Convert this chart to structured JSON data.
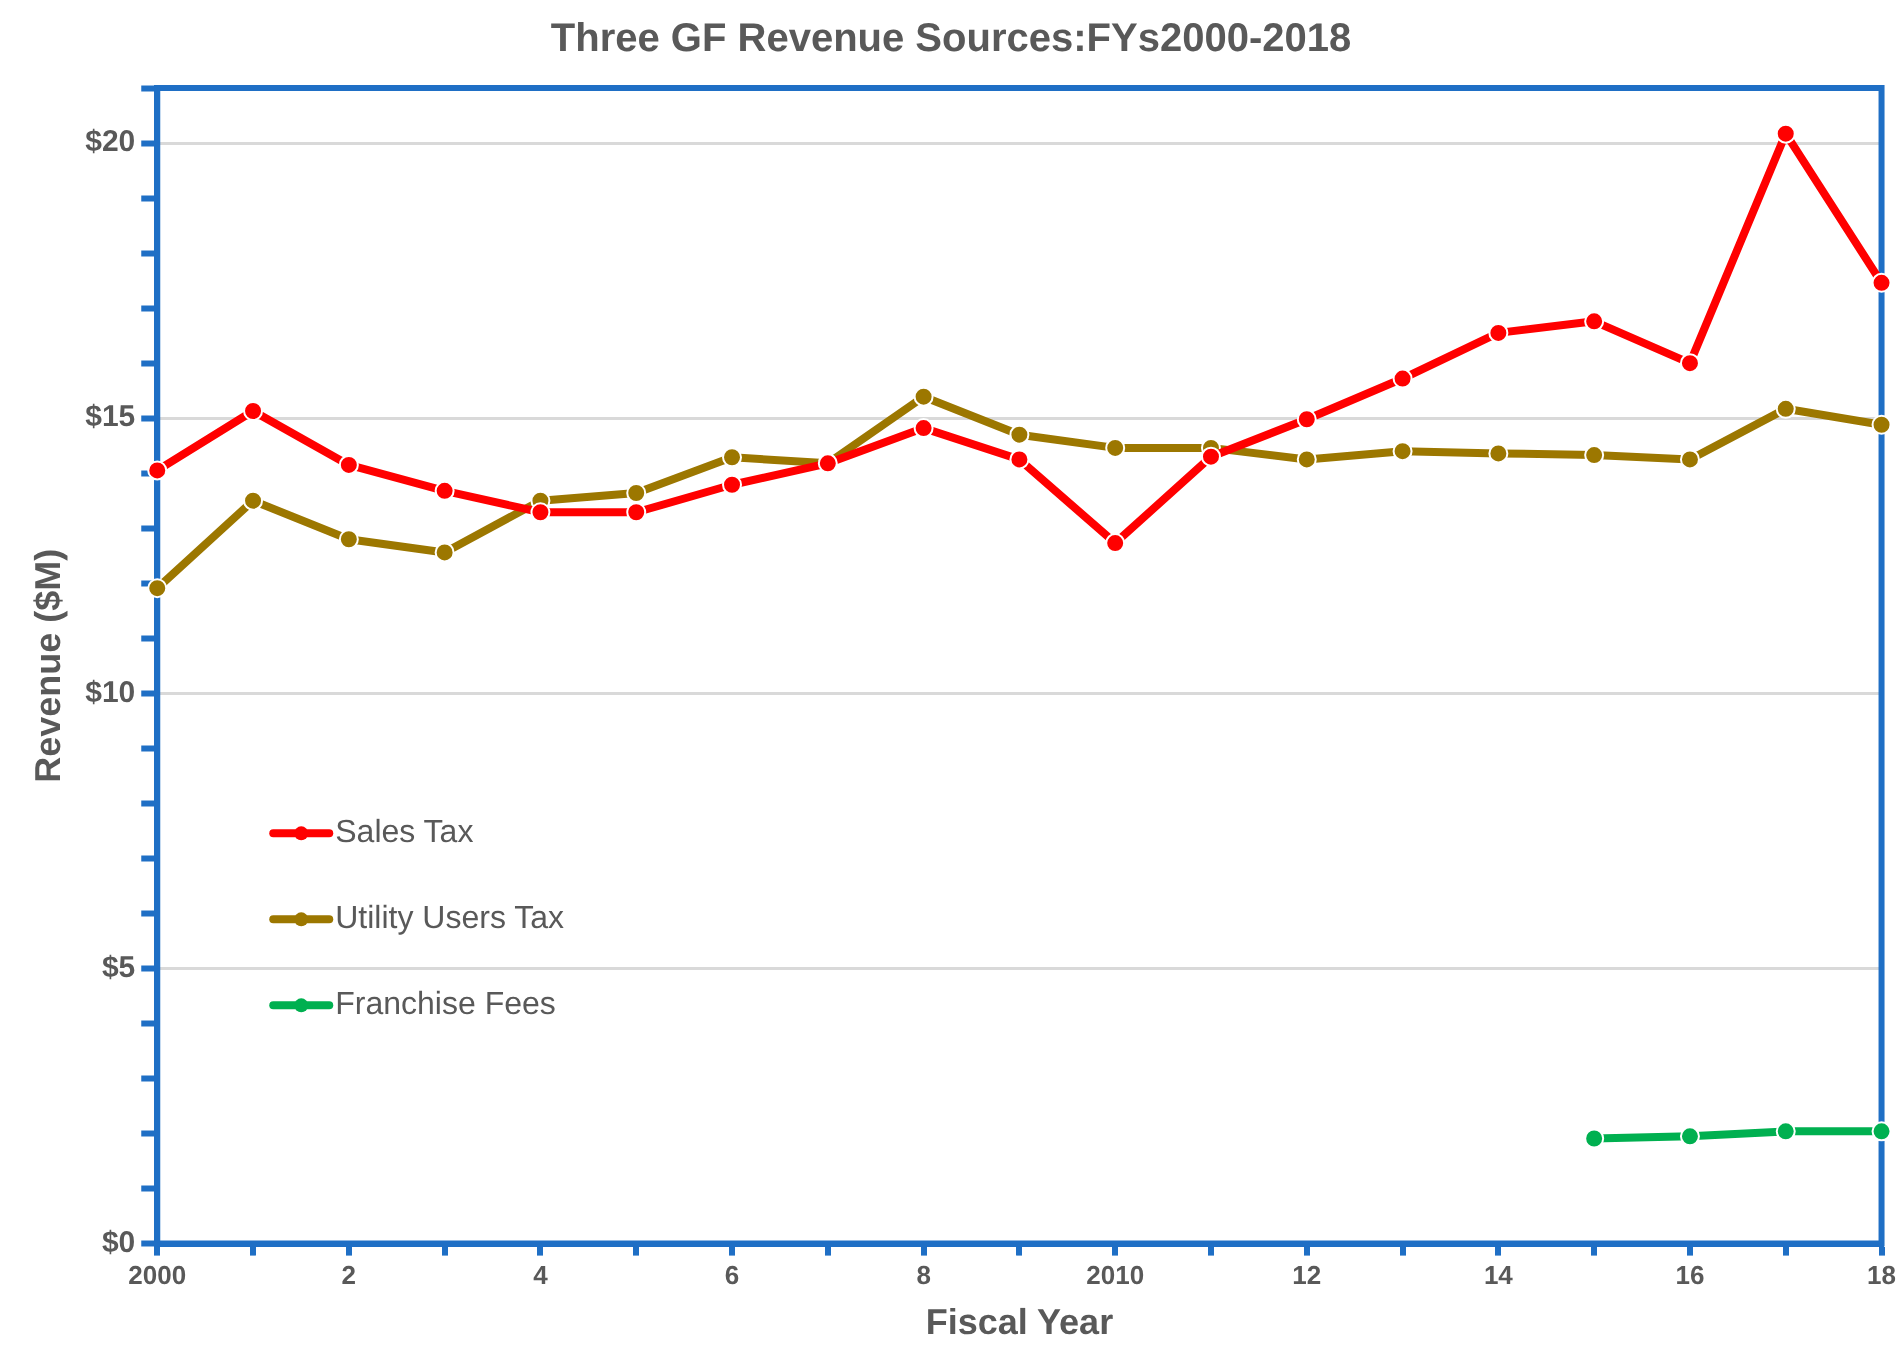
{
  "chart_data": {
    "type": "line",
    "title": "Three GF Revenue Sources:FYs2000-2018",
    "xlabel": "Fiscal Year",
    "ylabel": "Revenue ($M)",
    "categories": [
      "2000",
      null,
      "2",
      null,
      "4",
      null,
      "6",
      null,
      "8",
      null,
      "2010",
      null,
      "12",
      null,
      "14",
      null,
      "16",
      null,
      "18"
    ],
    "series": [
      {
        "name": "Sales Tax",
        "color": "#ff0000",
        "values": [
          14.05,
          15.13,
          14.15,
          13.68,
          13.29,
          13.29,
          13.79,
          14.18,
          14.82,
          14.25,
          12.73,
          14.3,
          14.98,
          15.72,
          16.55,
          16.76,
          16.0,
          20.17,
          17.46
        ]
      },
      {
        "name": "Utility Users Tax",
        "color": "#9c7700",
        "values": [
          11.91,
          13.5,
          12.8,
          12.56,
          13.5,
          13.64,
          14.29,
          14.18,
          15.39,
          14.7,
          14.46,
          14.46,
          14.25,
          14.4,
          14.36,
          14.33,
          14.25,
          15.17,
          14.88
        ]
      },
      {
        "name": "Franchise Fees",
        "color": "#00b050",
        "values": [
          null,
          null,
          null,
          null,
          null,
          null,
          null,
          null,
          null,
          null,
          null,
          null,
          null,
          null,
          null,
          1.91,
          1.95,
          2.04,
          2.04
        ]
      }
    ],
    "ylim": [
      0,
      21
    ],
    "yticks": [
      {
        "value": 0,
        "label": "$0"
      },
      {
        "value": 1,
        "label": null
      },
      {
        "value": 2,
        "label": null
      },
      {
        "value": 3,
        "label": null
      },
      {
        "value": 4,
        "label": null
      },
      {
        "value": 5,
        "label": "$5"
      },
      {
        "value": 6,
        "label": null
      },
      {
        "value": 7,
        "label": null
      },
      {
        "value": 8,
        "label": null
      },
      {
        "value": 9,
        "label": null
      },
      {
        "value": 10,
        "label": "$10"
      },
      {
        "value": 11,
        "label": null
      },
      {
        "value": 12,
        "label": null
      },
      {
        "value": 13,
        "label": null
      },
      {
        "value": 14,
        "label": null
      },
      {
        "value": 15,
        "label": "$15"
      },
      {
        "value": 16,
        "label": null
      },
      {
        "value": 17,
        "label": null
      },
      {
        "value": 18,
        "label": null
      },
      {
        "value": 19,
        "label": null
      },
      {
        "value": 20,
        "label": "$20"
      },
      {
        "value": 21,
        "label": null
      }
    ],
    "grid": "y",
    "legend": "left",
    "marker": "circle",
    "line_style": "solid"
  }
}
